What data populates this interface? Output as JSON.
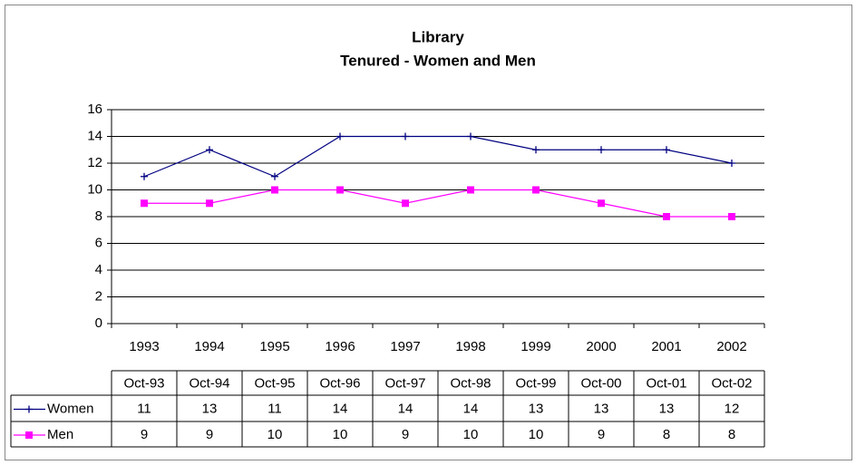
{
  "chart_data": {
    "type": "line",
    "title": "Library",
    "subtitle": "Tenured - Women and Men",
    "categories": [
      "1993",
      "1994",
      "1995",
      "1996",
      "1997",
      "1998",
      "1999",
      "2000",
      "2001",
      "2002"
    ],
    "table_headers": [
      "Oct-93",
      "Oct-94",
      "Oct-95",
      "Oct-96",
      "Oct-97",
      "Oct-98",
      "Oct-99",
      "Oct-00",
      "Oct-01",
      "Oct-02"
    ],
    "series": [
      {
        "name": "Women",
        "color": "#000080",
        "marker": "plus",
        "values": [
          11,
          13,
          11,
          14,
          14,
          14,
          13,
          13,
          13,
          12
        ]
      },
      {
        "name": "Men",
        "color": "#ff00ff",
        "marker": "square",
        "values": [
          9,
          9,
          10,
          10,
          9,
          10,
          10,
          9,
          8,
          8
        ]
      }
    ],
    "ylim": [
      0,
      16
    ],
    "yticks": [
      0,
      2,
      4,
      6,
      8,
      10,
      12,
      14,
      16
    ],
    "grid": true
  }
}
